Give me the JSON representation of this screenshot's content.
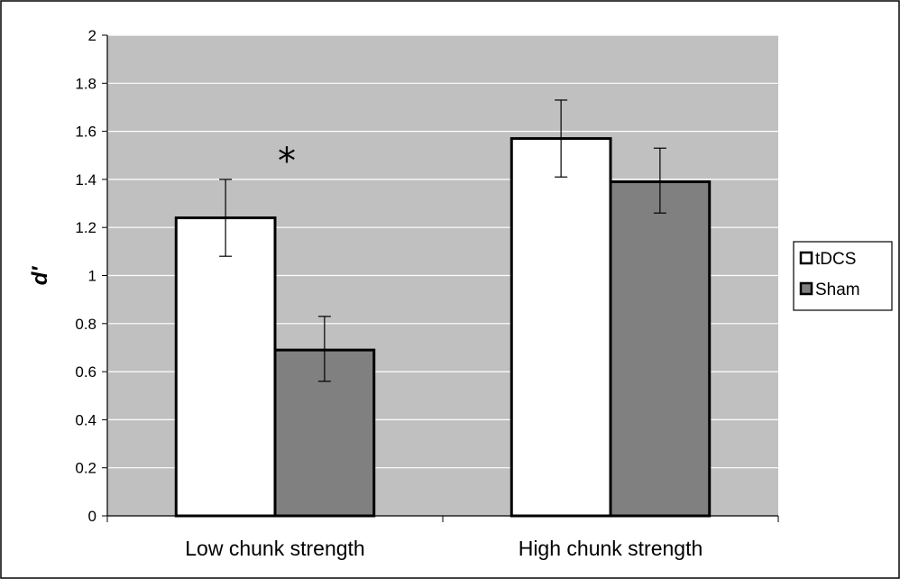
{
  "chart_data": {
    "type": "bar",
    "categories": [
      "Low chunk strength",
      "High chunk strength"
    ],
    "series": [
      {
        "name": "tDCS",
        "values": [
          1.24,
          1.57
        ],
        "error_low": [
          1.08,
          1.41
        ],
        "error_high": [
          1.4,
          1.73
        ],
        "color": "#ffffff"
      },
      {
        "name": "Sham",
        "values": [
          0.69,
          1.39
        ],
        "error_low": [
          0.56,
          1.26
        ],
        "error_high": [
          0.83,
          1.53
        ],
        "color": "#808080"
      }
    ],
    "ylabel": "d′",
    "ylim": [
      0,
      2
    ],
    "yticks": [
      "0",
      "0.2",
      "0.4",
      "0.6",
      "0.8",
      "1",
      "1.2",
      "1.4",
      "1.6",
      "1.8",
      "2"
    ],
    "grid": true,
    "plot_background": "#c0c0c0",
    "legend_placement": "right",
    "annotations": [
      {
        "text": "*",
        "category": "Low chunk strength"
      }
    ]
  }
}
